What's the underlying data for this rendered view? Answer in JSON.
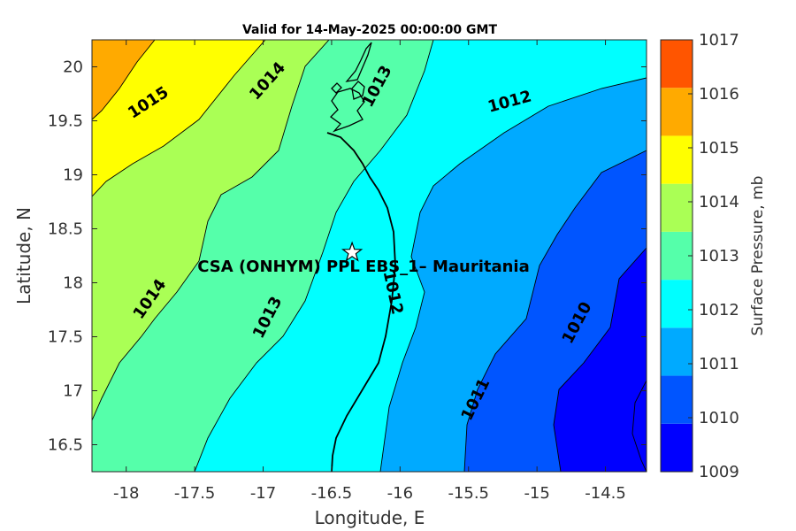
{
  "chart_data": {
    "type": "contour map",
    "title": "Valid for 14-May-2025 00:00:00 GMT",
    "xlabel": "Longitude, E",
    "ylabel": "Latitude, N",
    "xlim": [
      -18.25,
      -14.2
    ],
    "ylim": [
      16.25,
      20.25
    ],
    "x_ticks": [
      "-18",
      "-17.5",
      "-17",
      "-16.5",
      "-16",
      "-15.5",
      "-15",
      "-14.5"
    ],
    "y_ticks": [
      "16.5",
      "17",
      "17.5",
      "18",
      "18.5",
      "19",
      "19.5",
      "20"
    ],
    "colorbar": {
      "label": "Surface Pressure, mb",
      "levels": [
        "1009",
        "1010",
        "1011",
        "1012",
        "1013",
        "1014",
        "1015",
        "1016",
        "1017"
      ],
      "colors": [
        "#0000ff",
        "#0055ff",
        "#00aaff",
        "#00ffff",
        "#55ffaa",
        "#aaff55",
        "#ffff00",
        "#ffaa00",
        "#ff5500"
      ]
    },
    "contour_labels": [
      {
        "text": "1015",
        "lon": -17.84,
        "lat": 19.67,
        "angle": -33
      },
      {
        "text": "1014",
        "lon": -16.97,
        "lat": 19.87,
        "angle": -48
      },
      {
        "text": "1013",
        "lon": -16.17,
        "lat": 19.82,
        "angle": -62
      },
      {
        "text": "1012",
        "lon": -15.2,
        "lat": 19.68,
        "angle": -15
      },
      {
        "text": "1014",
        "lon": -17.83,
        "lat": 17.85,
        "angle": -55
      },
      {
        "text": "1013",
        "lon": -16.97,
        "lat": 17.68,
        "angle": -63
      },
      {
        "text": "1012",
        "lon": -16.05,
        "lat": 17.91,
        "angle": 78
      },
      {
        "text": "1011",
        "lon": -15.45,
        "lat": 16.92,
        "angle": -64
      },
      {
        "text": "1010",
        "lon": -14.71,
        "lat": 17.63,
        "angle": -62
      }
    ],
    "station": {
      "name": "CSA (ONHYM) PPL EBS_1– Mauritania",
      "lon": -16.35,
      "lat": 18.28
    }
  },
  "icons": {
    "station_marker": "star-icon"
  }
}
